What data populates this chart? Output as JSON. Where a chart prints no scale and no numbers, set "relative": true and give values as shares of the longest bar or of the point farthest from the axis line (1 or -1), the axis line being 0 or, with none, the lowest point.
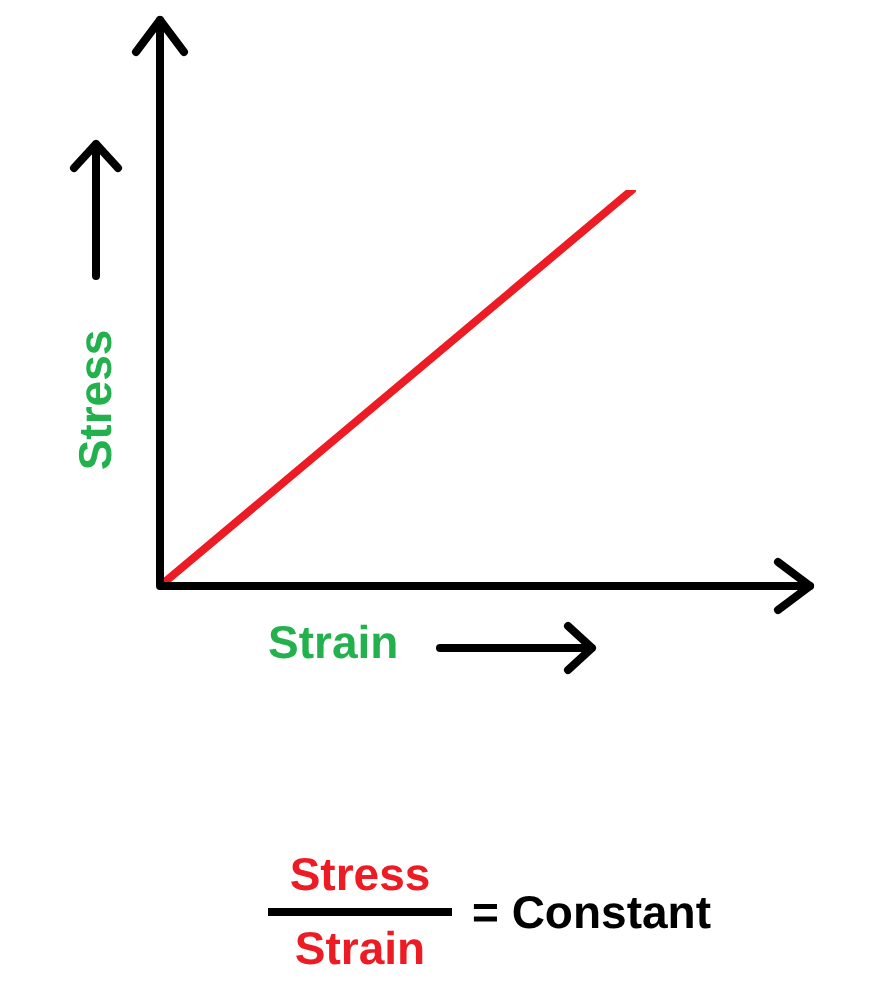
{
  "chart_data": {
    "type": "line",
    "relative": true,
    "xlabel": "Strain",
    "ylabel": "Stress",
    "categories": [
      null,
      null
    ],
    "series": [
      {
        "color": "#ed1c24",
        "values": [
          0,
          1
        ]
      }
    ],
    "annotations": [
      "Stress",
      "Strain",
      "= Constant"
    ],
    "legend": false,
    "marker": "none",
    "line_style": "solid"
  }
}
